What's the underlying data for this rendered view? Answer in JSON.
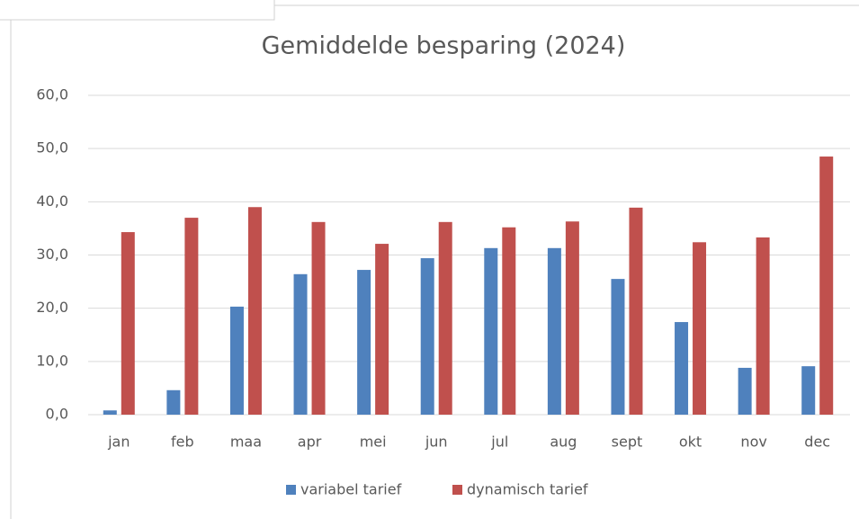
{
  "chart_data": {
    "type": "bar",
    "title": "Gemiddelde besparing (2024)",
    "categories": [
      "jan",
      "feb",
      "maa",
      "apr",
      "mei",
      "jun",
      "jul",
      "aug",
      "sept",
      "okt",
      "nov",
      "dec"
    ],
    "series": [
      {
        "name": "variabel tarief",
        "color": "#4f81bd",
        "values": [
          0.8,
          4.6,
          20.3,
          26.4,
          27.2,
          29.4,
          31.3,
          31.3,
          25.5,
          17.4,
          8.8,
          9.1
        ]
      },
      {
        "name": "dynamisch tarief",
        "color": "#c0504d",
        "values": [
          34.3,
          37.0,
          39.0,
          36.2,
          32.1,
          36.2,
          35.2,
          36.3,
          38.9,
          32.4,
          33.3,
          48.5
        ]
      }
    ],
    "ylim": [
      0,
      60
    ],
    "yticks": [
      {
        "value": 0,
        "label": "0,0"
      },
      {
        "value": 10,
        "label": "10,0"
      },
      {
        "value": 20,
        "label": "20,0"
      },
      {
        "value": 30,
        "label": "30,0"
      },
      {
        "value": 40,
        "label": "40,0"
      },
      {
        "value": 50,
        "label": "50,0"
      },
      {
        "value": 60,
        "label": "60,0"
      }
    ],
    "grid": true,
    "legend": "bottom"
  }
}
